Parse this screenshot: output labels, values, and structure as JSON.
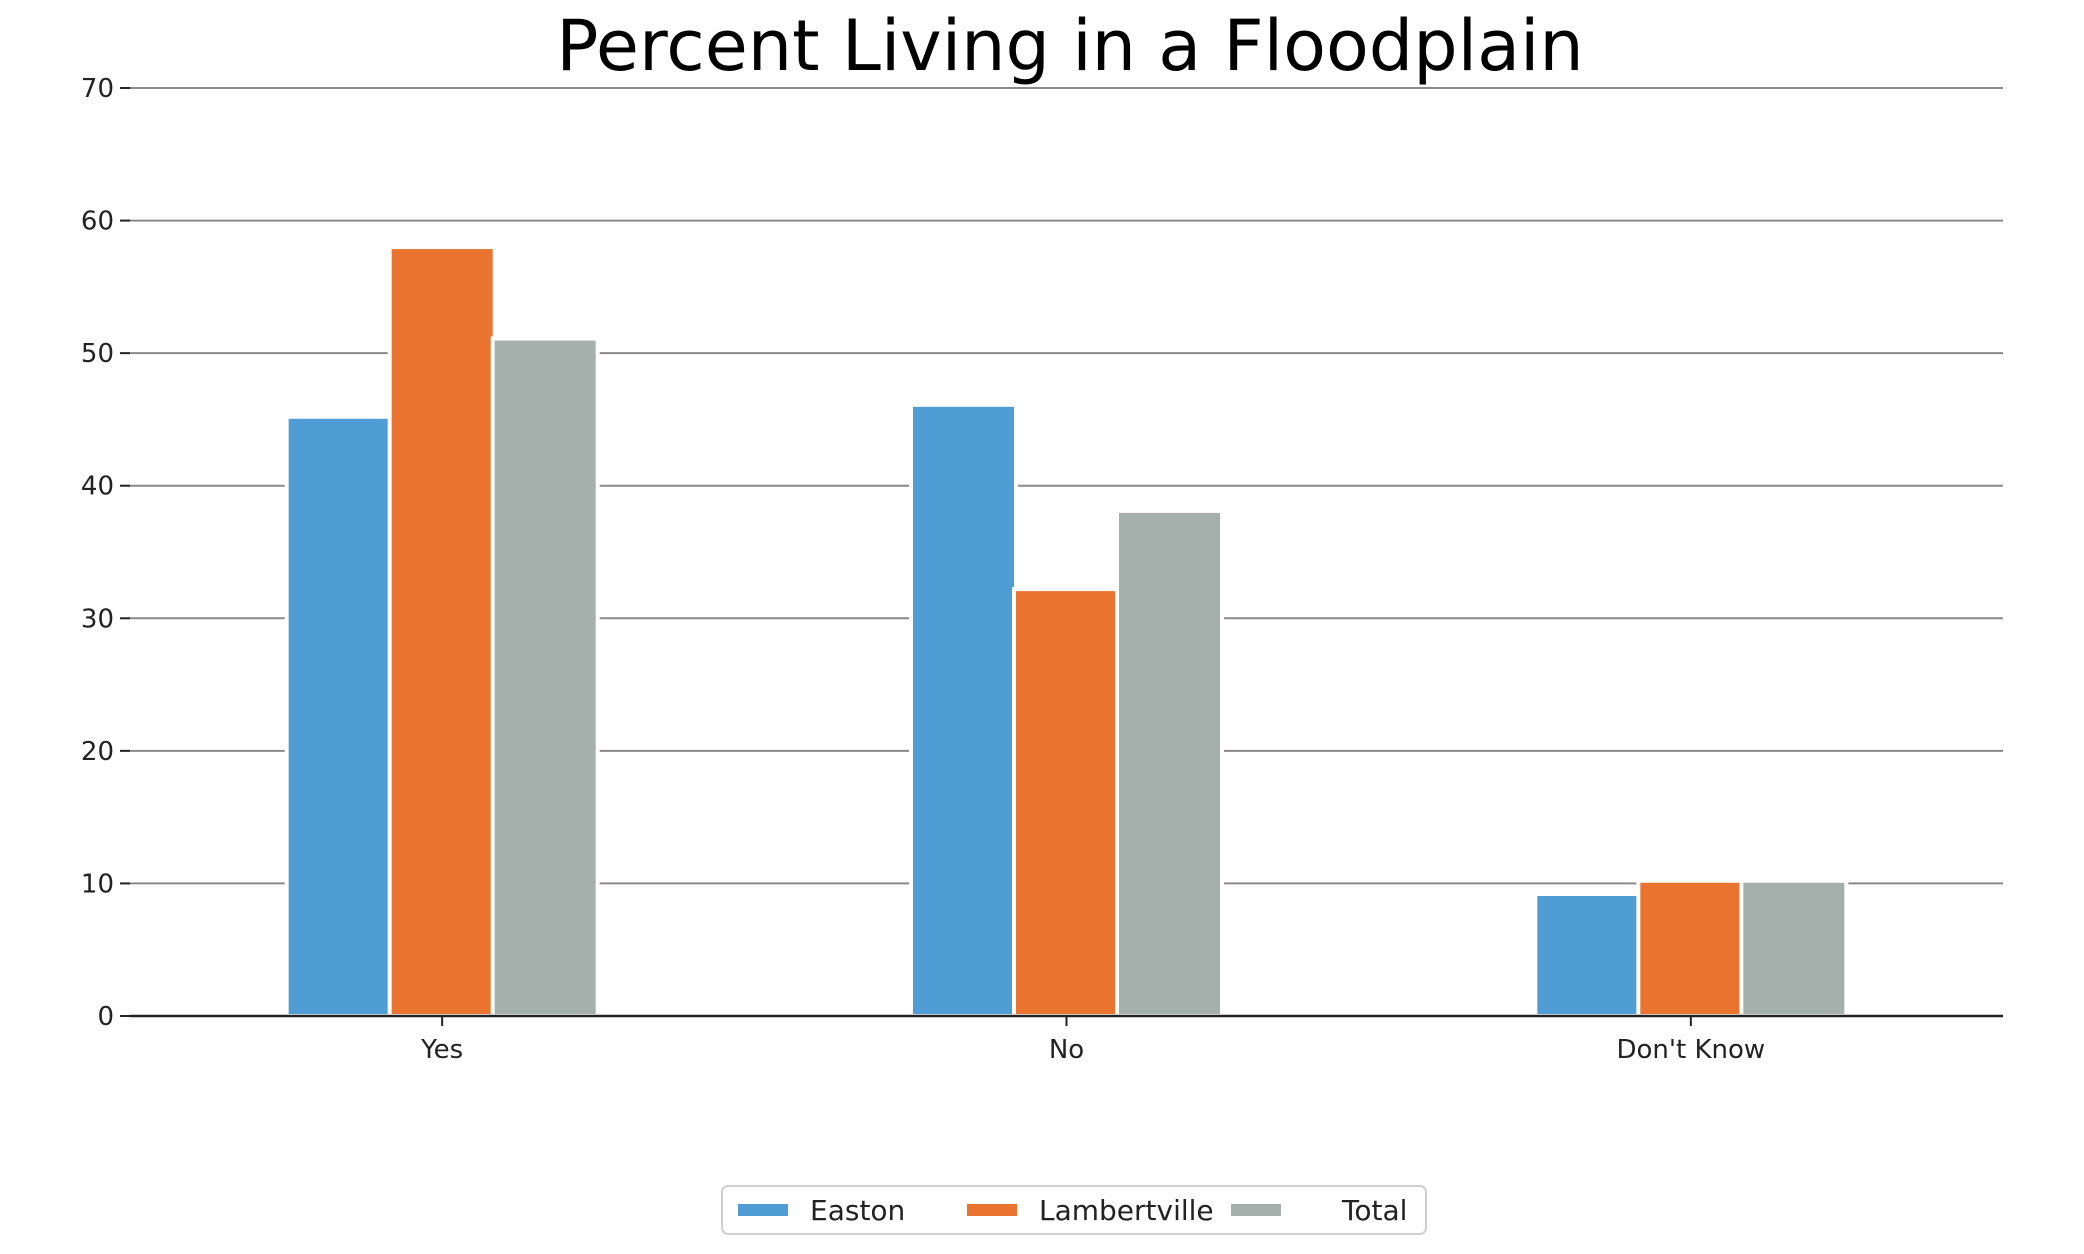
{
  "chart_data": {
    "type": "bar",
    "title": "Percent Living in a Floodplain",
    "xlabel": "",
    "ylabel": "",
    "categories": [
      "Yes",
      "No",
      "Don't Know"
    ],
    "series": [
      {
        "name": "Easton",
        "color": "#4f9dd4",
        "values": [
          44.9,
          45.8,
          8.9
        ]
      },
      {
        "name": "Lambertville",
        "color": "#e87430",
        "values": [
          57.7,
          31.9,
          9.9
        ]
      },
      {
        "name": "Total",
        "color": "#a5b0ad",
        "values": [
          50.8,
          37.8,
          9.9
        ]
      }
    ],
    "ylim": [
      0,
      70
    ],
    "yticks": [
      0,
      10,
      20,
      30,
      40,
      50,
      60,
      70
    ],
    "grid": "horizontal",
    "legend": "bottom-center"
  }
}
